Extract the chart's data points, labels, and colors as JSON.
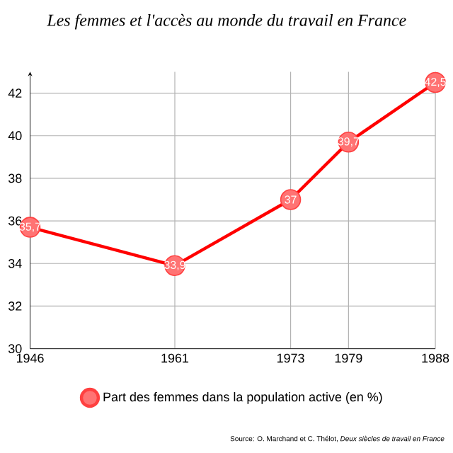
{
  "chart_data": {
    "type": "line",
    "title": "Les femmes et l'accès au monde du travail en France",
    "x": [
      1946,
      1961,
      1973,
      1979,
      1988
    ],
    "series": [
      {
        "name": "Part des femmes dans la population active (en %)",
        "color": "#ff0000",
        "values": [
          35.7,
          33.9,
          37,
          39.7,
          42.5
        ],
        "value_labels": [
          "35,7",
          "33,9",
          "37",
          "39,7",
          "42,5"
        ]
      }
    ],
    "xlim": [
      1946,
      1988
    ],
    "xticks": [
      1946,
      1961,
      1973,
      1979,
      1988
    ],
    "ylim": [
      30,
      43
    ],
    "yticks": [
      30,
      32,
      34,
      36,
      38,
      40,
      42
    ],
    "grid": true,
    "legend": "bottom",
    "marker": "circle",
    "line_style": "solid",
    "annotations": [
      "Source: O. Marchand et C. Thélot, *Deux siècles de travail en France*"
    ]
  }
}
